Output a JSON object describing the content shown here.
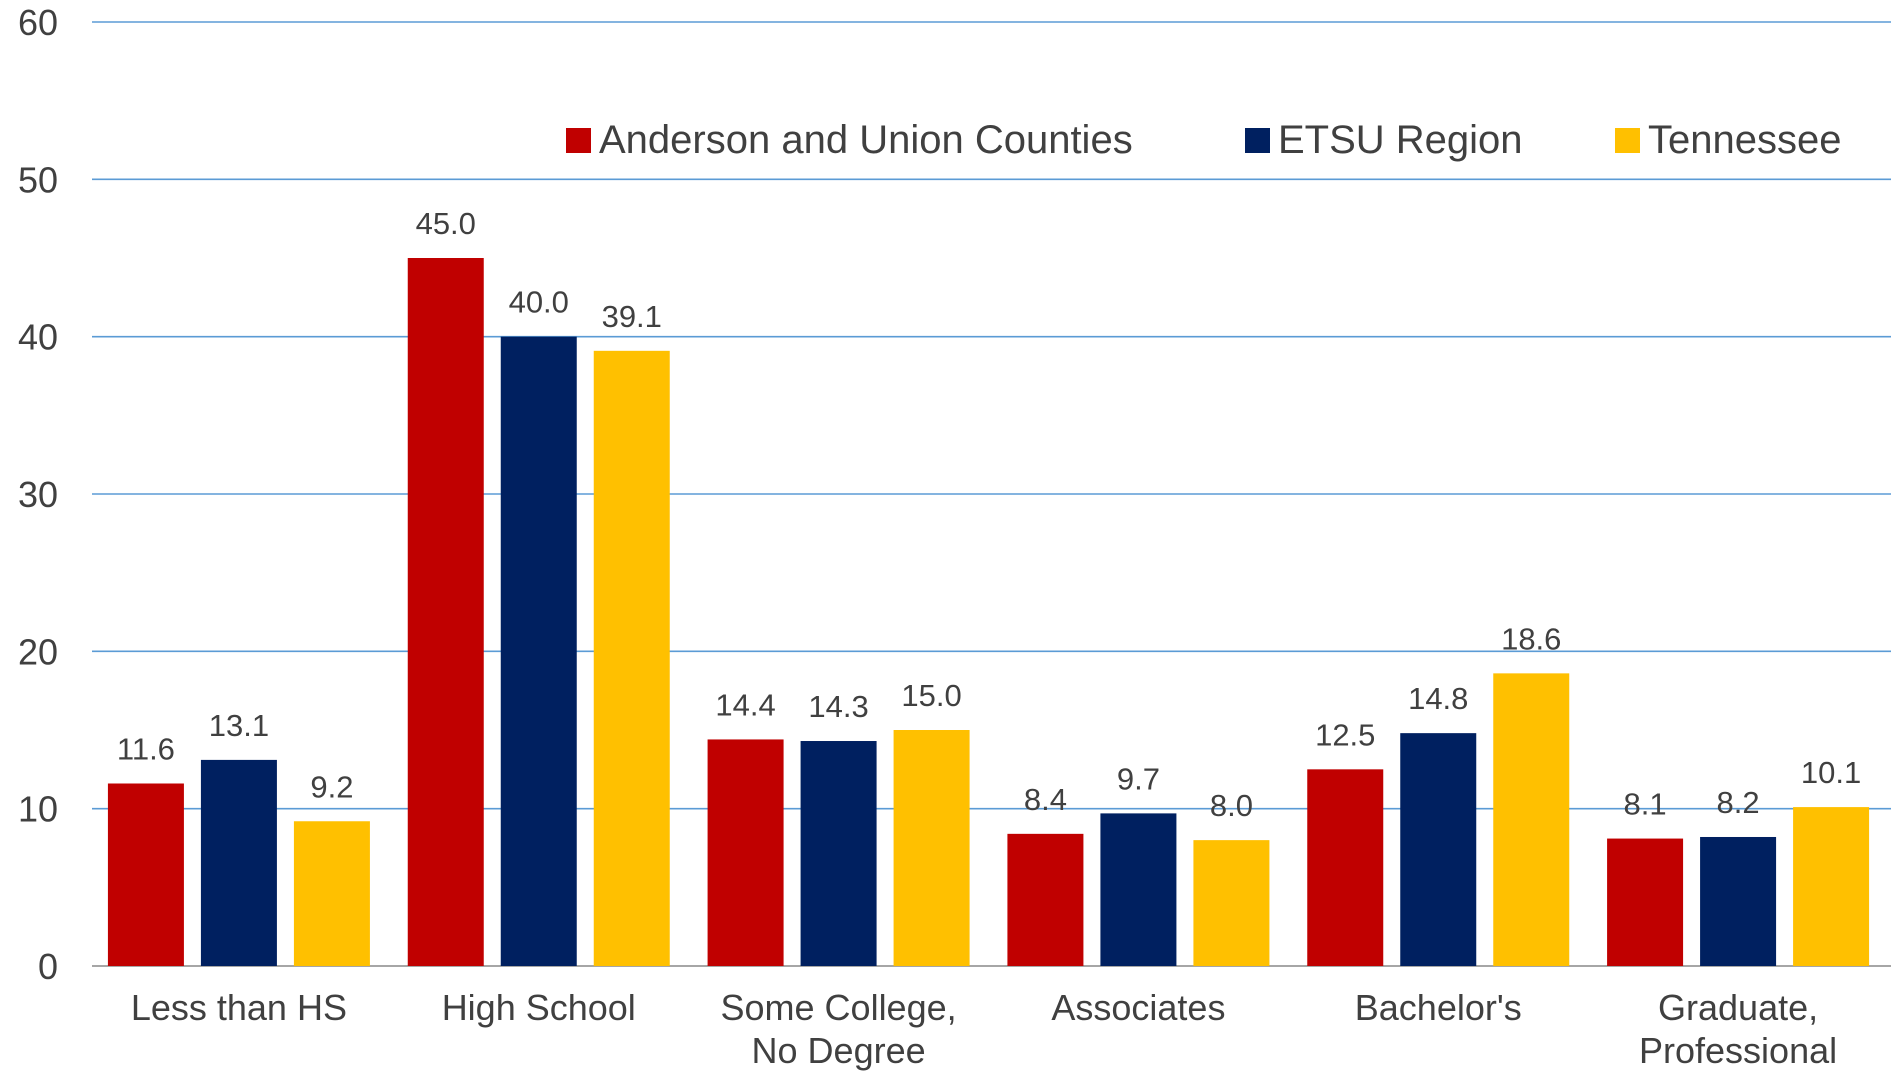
{
  "chart_data": {
    "type": "bar",
    "categories": [
      "Less than HS",
      "High School",
      "Some College, No Degree",
      "Associates",
      "Bachelor's",
      "Graduate, Professional"
    ],
    "category_lines": [
      [
        "Less than HS"
      ],
      [
        "High School"
      ],
      [
        "Some College,",
        "No Degree"
      ],
      [
        "Associates"
      ],
      [
        "Bachelor's"
      ],
      [
        "Graduate,",
        "Professional"
      ]
    ],
    "series": [
      {
        "name": "Anderson and Union Counties",
        "color": "#C00000",
        "values": [
          11.6,
          45.0,
          14.4,
          8.4,
          12.5,
          8.1
        ]
      },
      {
        "name": "ETSU Region",
        "color": "#002060",
        "values": [
          13.1,
          40.0,
          14.3,
          9.7,
          14.8,
          8.2
        ]
      },
      {
        "name": "Tennessee",
        "color": "#FFC000",
        "values": [
          9.2,
          39.1,
          15.0,
          8.0,
          18.6,
          10.1
        ]
      }
    ],
    "ylim": [
      0,
      60
    ],
    "yticks": [
      0,
      10,
      20,
      30,
      40,
      50,
      60
    ],
    "grid": true,
    "grid_color": "#5B9BD5",
    "legend_position": "top-right",
    "data_labels": true
  }
}
